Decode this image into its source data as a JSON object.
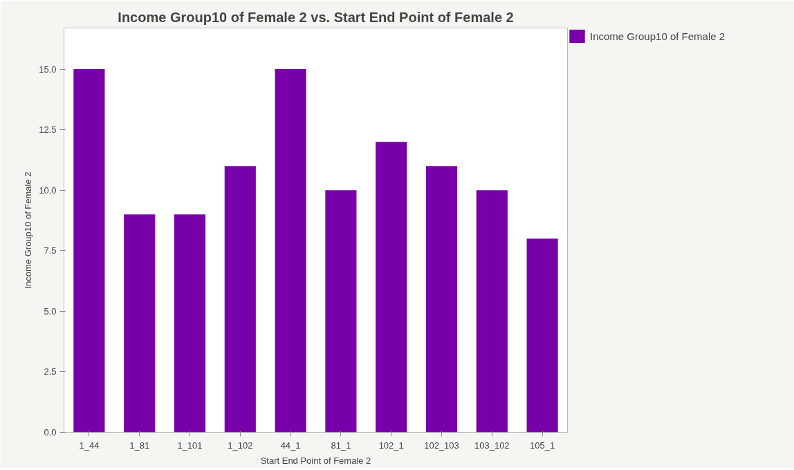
{
  "chart_data": {
    "type": "bar",
    "title": "Income Group10 of Female 2 vs. Start End Point of Female 2",
    "xlabel": "Start End Point of Female 2",
    "ylabel": "Income Group10 of Female 2",
    "categories": [
      "1_44",
      "1_81",
      "1_101",
      "1_102",
      "44_1",
      "81_1",
      "102_1",
      "102_103",
      "103_102",
      "105_1"
    ],
    "series": [
      {
        "name": "Income Group10 of Female 2",
        "color": "#7800a8",
        "values": [
          15,
          9,
          9,
          11,
          15,
          10,
          12,
          11,
          10,
          8
        ]
      }
    ],
    "ylim": [
      0,
      16.7
    ],
    "yticks": [
      {
        "value": 0,
        "label": "0.0"
      },
      {
        "value": 2.5,
        "label": "2.5"
      },
      {
        "value": 5,
        "label": "5.0"
      },
      {
        "value": 7.5,
        "label": "7.5"
      },
      {
        "value": 10,
        "label": "10.0"
      },
      {
        "value": 12.5,
        "label": "12.5"
      },
      {
        "value": 15,
        "label": "15.0"
      }
    ],
    "grid": false,
    "legend": "top right"
  }
}
